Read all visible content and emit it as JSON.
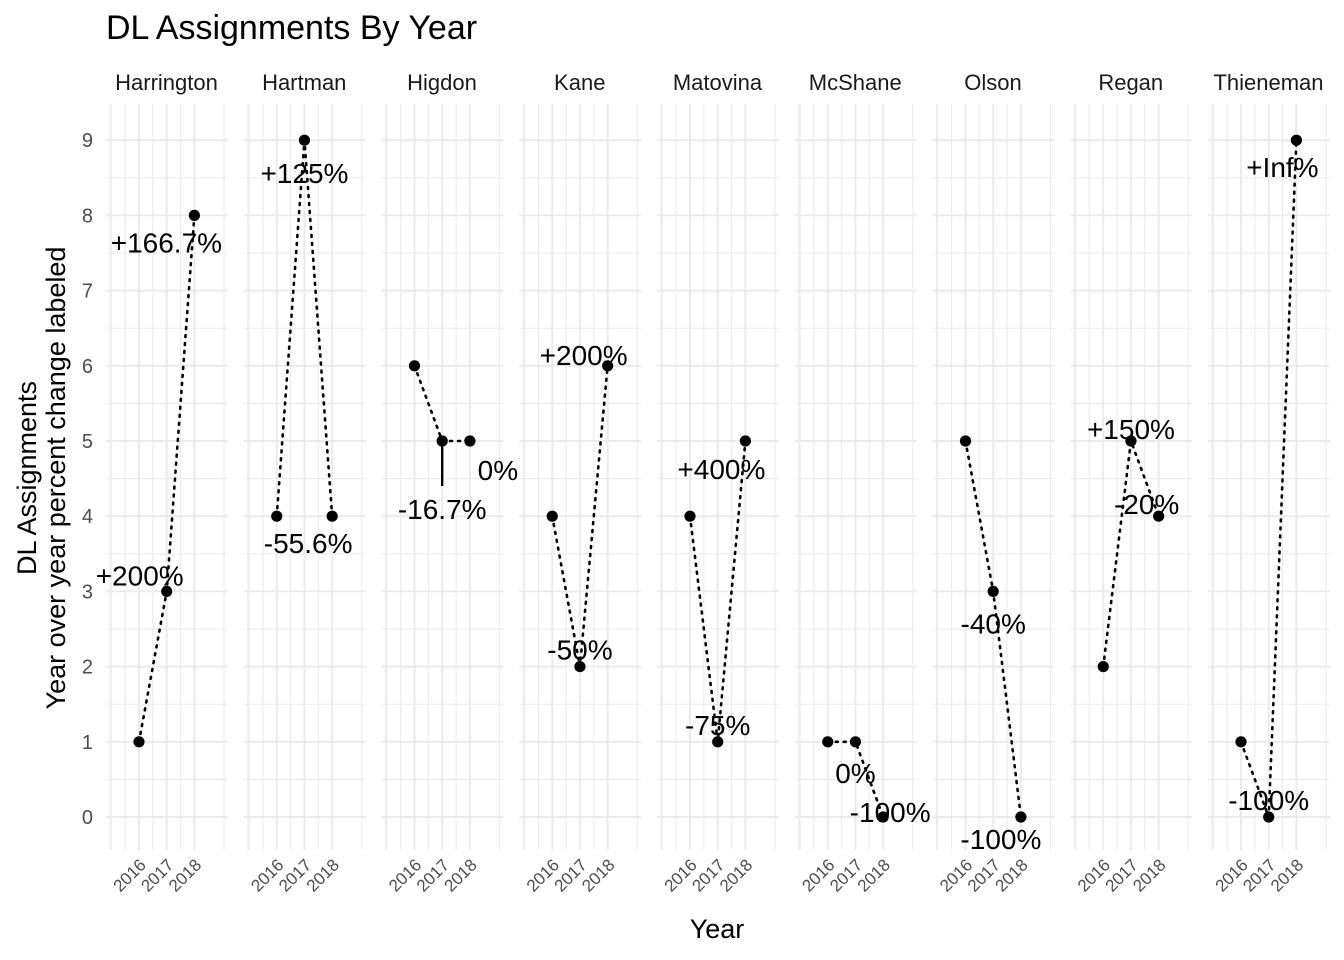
{
  "chart_data": {
    "type": "line",
    "title": "DL Assignments By Year",
    "xlabel": "Year",
    "ylabel": [
      "DL Assignments",
      "Year over year percent change labeled"
    ],
    "x": [
      2016,
      2017,
      2018
    ],
    "x_tick_labels": [
      "2016",
      "2017",
      "2018"
    ],
    "y_ticks": [
      0,
      1,
      2,
      3,
      4,
      5,
      6,
      7,
      8,
      9
    ],
    "ylim": [
      -0.45,
      9.45
    ],
    "grid": true,
    "marker_color": "#000000",
    "line_style": "dotted",
    "facets": [
      {
        "name": "Harrington",
        "values": [
          1,
          3,
          8
        ],
        "change_labels": [
          "",
          "+200%",
          "+166.7%"
        ]
      },
      {
        "name": "Hartman",
        "values": [
          4,
          9,
          4
        ],
        "change_labels": [
          "",
          "+125%",
          "-55.6%"
        ]
      },
      {
        "name": "Higdon",
        "values": [
          6,
          5,
          5
        ],
        "change_labels": [
          "",
          "-16.7%",
          "0%"
        ]
      },
      {
        "name": "Kane",
        "values": [
          4,
          2,
          6
        ],
        "change_labels": [
          "",
          "-50%",
          "+200%"
        ]
      },
      {
        "name": "Matovina",
        "values": [
          4,
          1,
          5
        ],
        "change_labels": [
          "",
          "-75%",
          "+400%"
        ]
      },
      {
        "name": "McShane",
        "values": [
          1,
          1,
          0
        ],
        "change_labels": [
          "",
          "0%",
          "-100%"
        ]
      },
      {
        "name": "Olson",
        "values": [
          5,
          3,
          0
        ],
        "change_labels": [
          "",
          "-40%",
          "-100%"
        ]
      },
      {
        "name": "Regan",
        "values": [
          2,
          5,
          4
        ],
        "change_labels": [
          "",
          "+150%",
          "-20%"
        ]
      },
      {
        "name": "Thieneman",
        "values": [
          1,
          0,
          9
        ],
        "change_labels": [
          "",
          "-100%",
          "+Inf%"
        ]
      }
    ]
  }
}
